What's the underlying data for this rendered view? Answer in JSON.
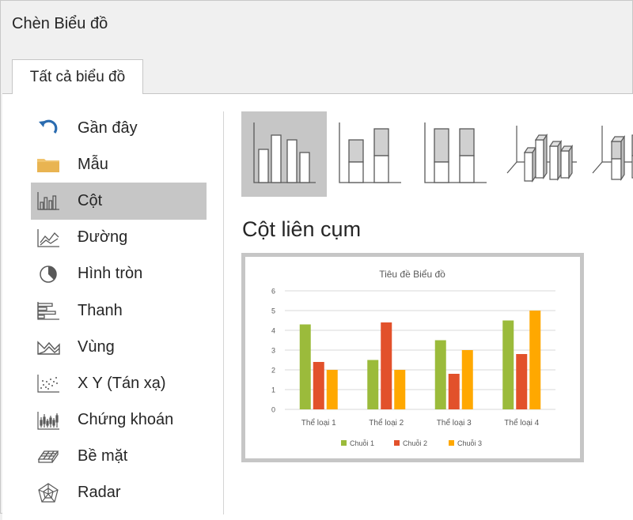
{
  "dialog": {
    "title": "Chèn Biểu đồ"
  },
  "tab": {
    "label": "Tất cả biểu đồ"
  },
  "sidebar": {
    "items": [
      {
        "label": "Gần đây",
        "icon": "recent-icon"
      },
      {
        "label": "Mẫu",
        "icon": "folder-icon"
      },
      {
        "label": "Cột",
        "icon": "column-chart-icon",
        "selected": true
      },
      {
        "label": "Đường",
        "icon": "line-chart-icon"
      },
      {
        "label": "Hình tròn",
        "icon": "pie-chart-icon"
      },
      {
        "label": "Thanh",
        "icon": "bar-chart-icon"
      },
      {
        "label": "Vùng",
        "icon": "area-chart-icon"
      },
      {
        "label": "X Y (Tán xạ)",
        "icon": "scatter-chart-icon"
      },
      {
        "label": "Chứng khoán",
        "icon": "stock-chart-icon"
      },
      {
        "label": "Bề mặt",
        "icon": "surface-chart-icon"
      },
      {
        "label": "Radar",
        "icon": "radar-chart-icon"
      }
    ]
  },
  "subtypes": {
    "selected_index": 0,
    "items": [
      {
        "icon": "clustered-column-icon"
      },
      {
        "icon": "stacked-column-icon"
      },
      {
        "icon": "100-stacked-column-icon"
      },
      {
        "icon": "3d-clustered-column-icon"
      },
      {
        "icon": "3d-stacked-column-icon"
      }
    ]
  },
  "preview": {
    "name": "Cột liên cụm"
  },
  "colors": {
    "series1": "#9bbb3b",
    "series2": "#e2512b",
    "series3": "#ffa800",
    "selected": "#c6c6c6"
  },
  "chart_data": {
    "type": "bar",
    "title": "Tiêu đề Biểu đồ",
    "categories": [
      "Thể loại 1",
      "Thể loại 2",
      "Thể loại 3",
      "Thể loại 4"
    ],
    "series": [
      {
        "name": "Chuỗi 1",
        "values": [
          4.3,
          2.5,
          3.5,
          4.5
        ]
      },
      {
        "name": "Chuỗi 2",
        "values": [
          2.4,
          4.4,
          1.8,
          2.8
        ]
      },
      {
        "name": "Chuỗi 3",
        "values": [
          2,
          2,
          3,
          5
        ]
      }
    ],
    "yticks": [
      "0",
      "1",
      "2",
      "3",
      "4",
      "5",
      "6"
    ],
    "ylim": [
      0,
      6
    ],
    "grid": true,
    "legend": "bottom"
  }
}
